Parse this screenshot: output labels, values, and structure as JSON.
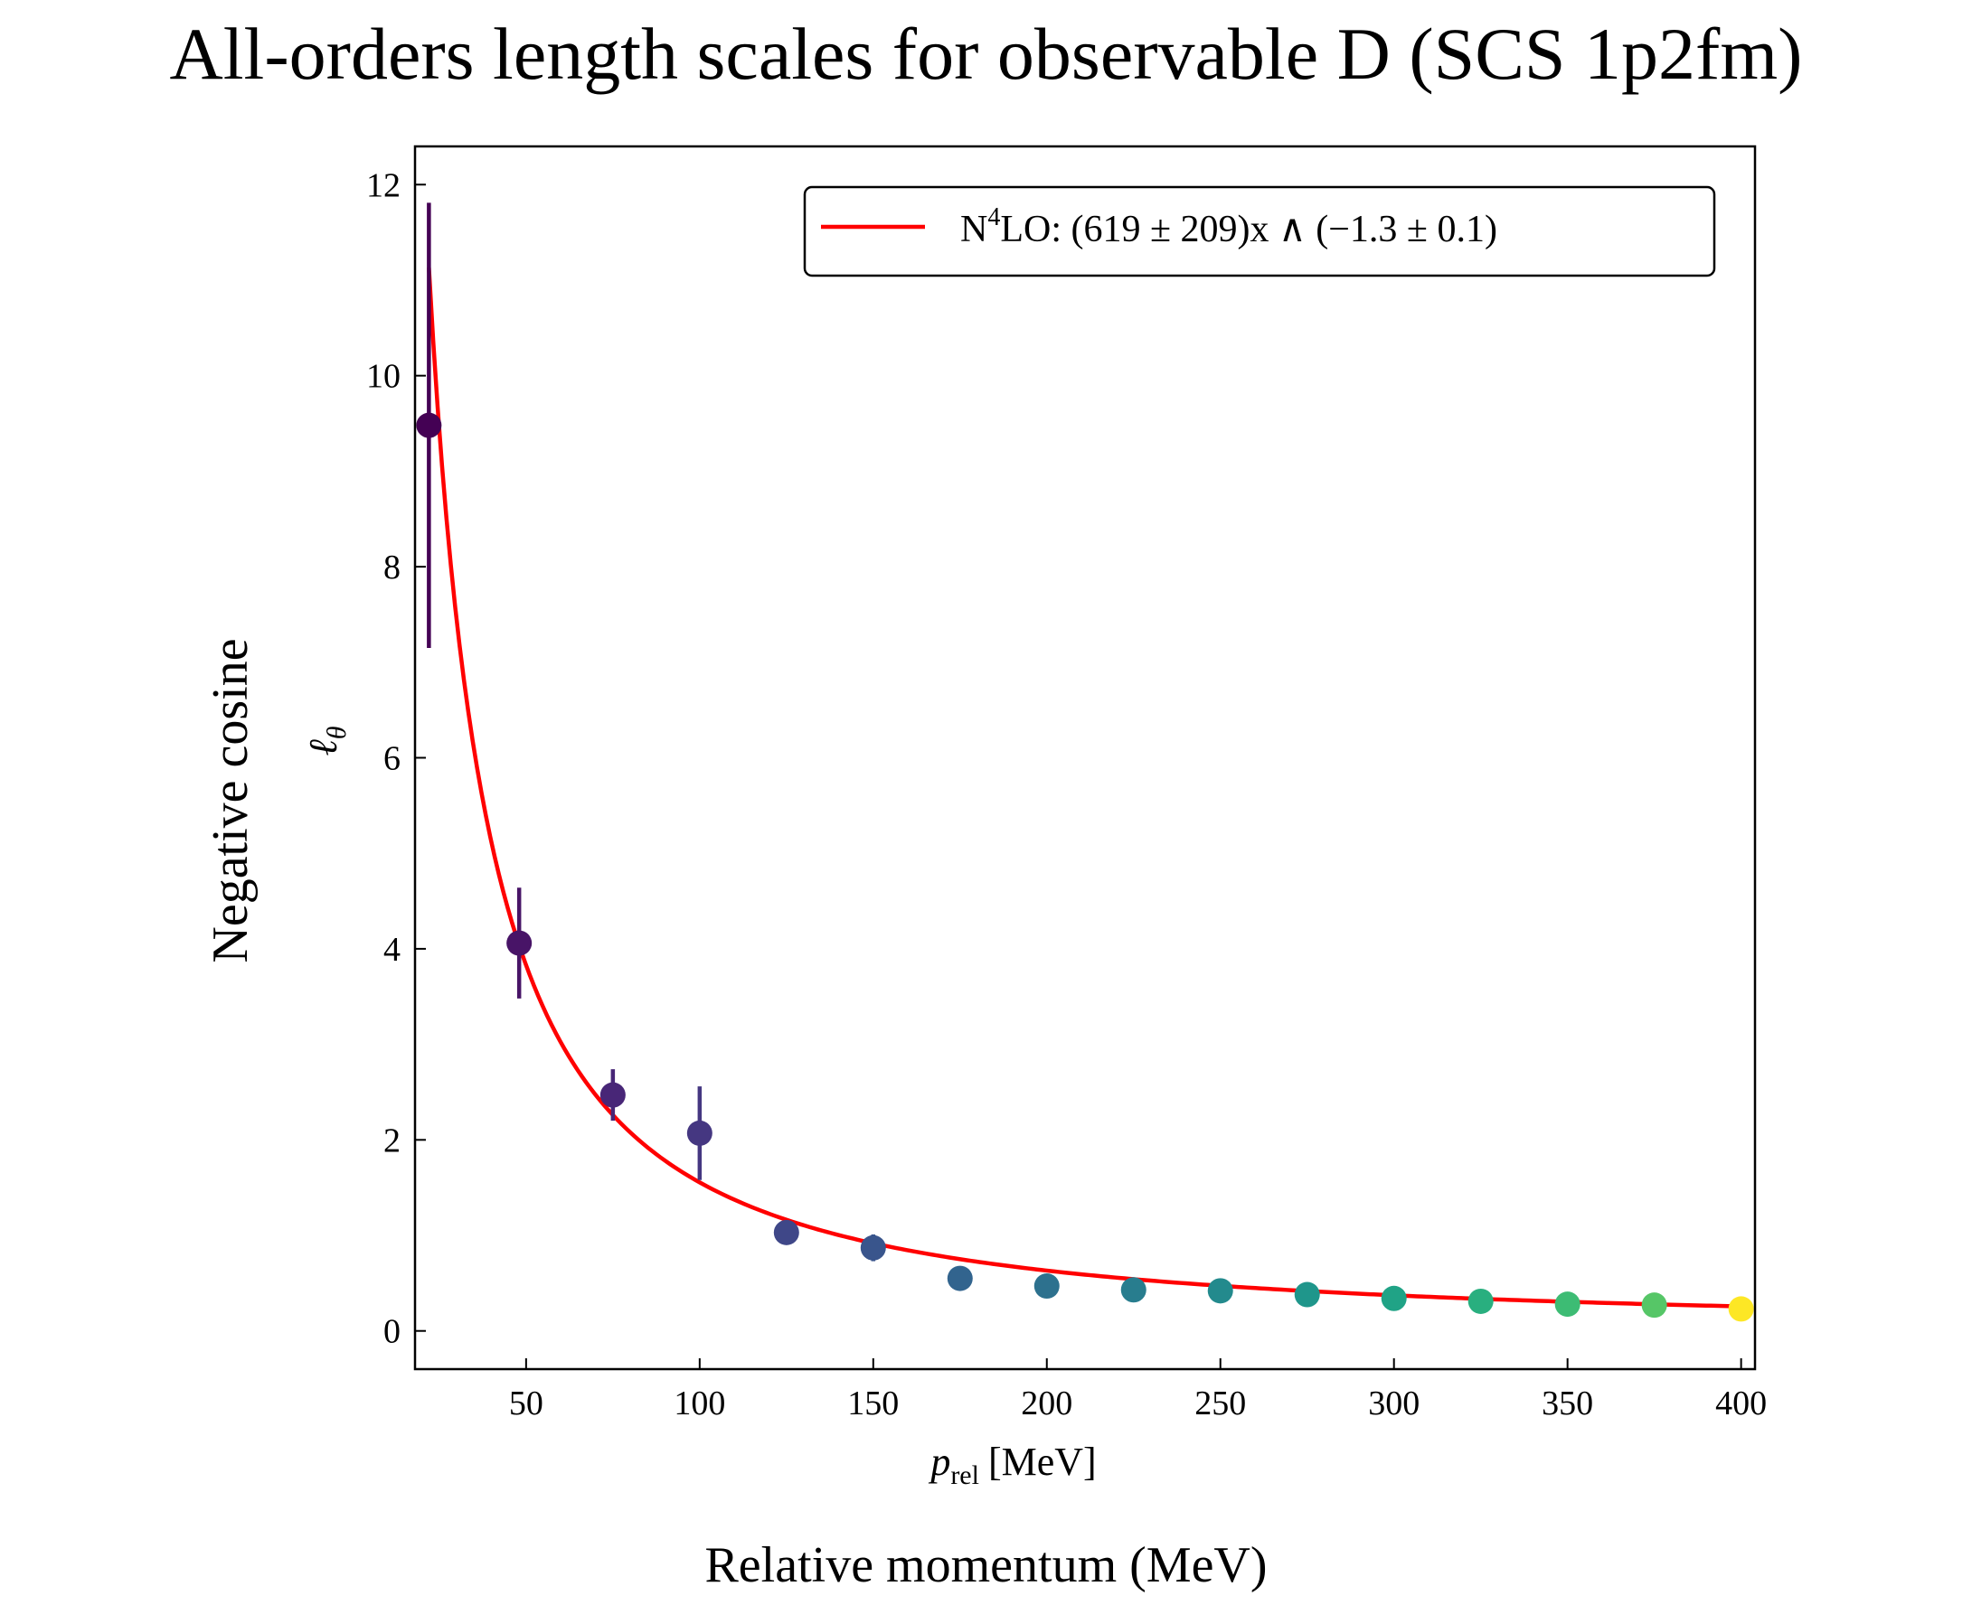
{
  "figure": {
    "title": "All-orders length scales for observable D (SCS 1p2fm)",
    "outer_ylabel": "Negative cosine",
    "outer_xlabel": "Relative momentum (MeV)"
  },
  "chart_data": {
    "type": "scatter",
    "title": "All-orders length scales for observable D (SCS 1p2fm)",
    "xlabel": "p_rel [MeV]",
    "xlabel_main": "p",
    "xlabel_sub": "rel",
    "xlabel_unit": "[MeV]",
    "ylabel": "ℓθ",
    "ylabel_main": "ℓ",
    "ylabel_sub": "θ",
    "xlim": [
      18,
      404
    ],
    "ylim": [
      -0.4,
      12.4
    ],
    "xticks": [
      50,
      100,
      150,
      200,
      250,
      300,
      350,
      400
    ],
    "yticks": [
      0,
      2,
      4,
      6,
      8,
      10,
      12
    ],
    "grid": false,
    "legend_position": "top-right",
    "points": {
      "x": [
        22,
        48,
        75,
        100,
        125,
        150,
        175,
        200,
        225,
        250,
        275,
        300,
        325,
        350,
        375,
        400
      ],
      "y": [
        9.48,
        4.06,
        2.47,
        2.07,
        1.03,
        0.87,
        0.55,
        0.47,
        0.43,
        0.42,
        0.38,
        0.34,
        0.31,
        0.28,
        0.27,
        0.23
      ],
      "err": [
        2.33,
        0.58,
        0.27,
        0.49,
        0.07,
        0.14,
        0.05,
        0.04,
        0.03,
        0.03,
        0.03,
        0.03,
        0.02,
        0.02,
        0.02,
        0.02
      ],
      "colors": [
        "#440154",
        "#481467",
        "#482677",
        "#453781",
        "#3f4788",
        "#39558c",
        "#32648e",
        "#2d718e",
        "#287d8e",
        "#238a8d",
        "#1f968b",
        "#20a386",
        "#29af7f",
        "#3dbc74",
        "#56c667",
        "#fde725"
      ]
    },
    "series": [
      {
        "name": "N4LO fit",
        "color": "#ff0000",
        "coefficient": 619,
        "exponent": -1.3,
        "x_range": [
          22,
          400
        ]
      }
    ],
    "legend": {
      "label_prefix": "N",
      "label_sup": "4",
      "label_rest": "LO: (619 ± 209)x ∧ (−1.3 ± 0.1)"
    }
  }
}
